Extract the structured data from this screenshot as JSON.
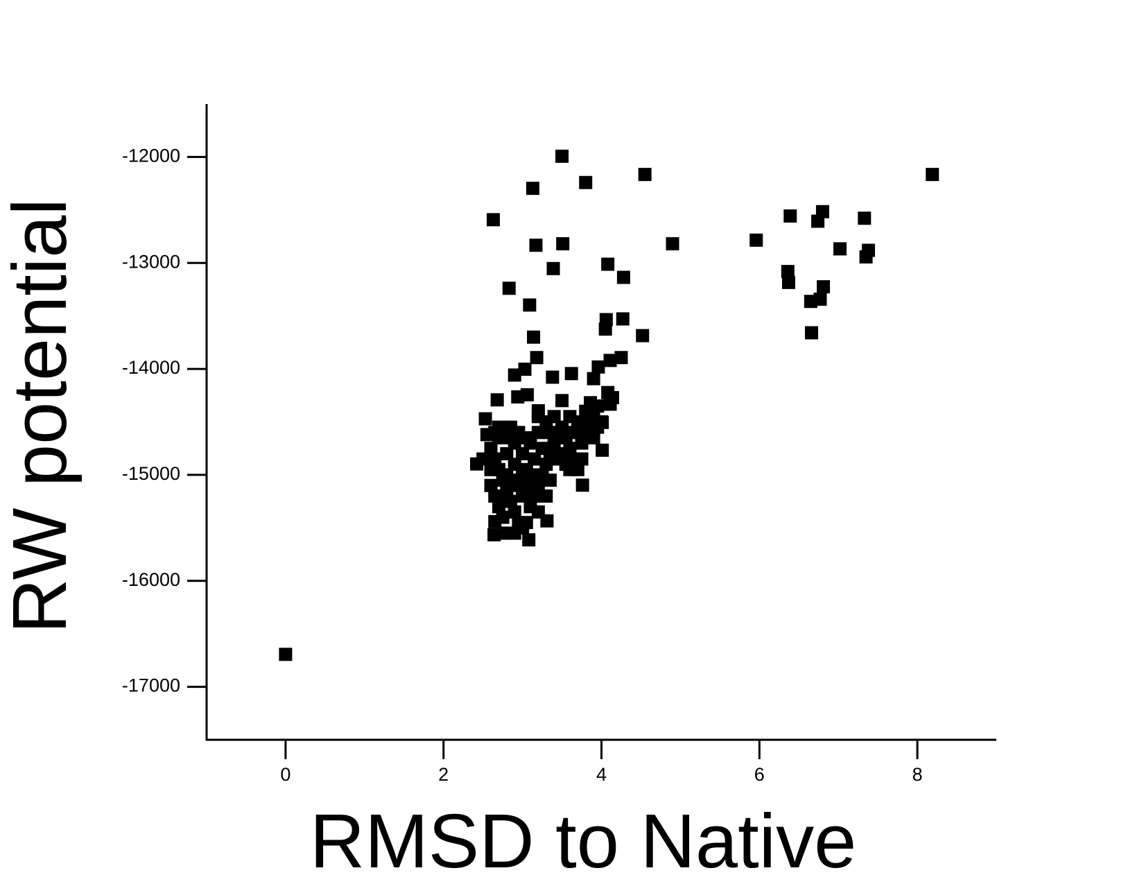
{
  "chart_data": {
    "type": "scatter",
    "xlabel": "RMSD to Native",
    "ylabel": "RW potential",
    "color": "#000000",
    "xlim": [
      -1,
      9
    ],
    "xticks": [
      0,
      2,
      4,
      6,
      8
    ],
    "ylim": [
      -17500,
      -11500
    ],
    "yticks": [
      -12000,
      -13000,
      -14000,
      -15000,
      -16000,
      -17000
    ],
    "x": [
      0,
      3.5,
      3.13,
      3.8,
      4.55,
      8.19,
      2.63,
      3.17,
      3.51,
      4.9,
      5.96,
      6.39,
      6.74,
      6.8,
      7.33,
      7.02,
      7.38,
      7.35,
      3.39,
      4.08,
      4.28,
      6.36,
      6.37,
      6.81,
      6.77,
      6.65,
      6.66,
      2.83,
      3.09,
      3.14,
      4.06,
      4.27,
      4.05,
      4.52,
      3.18,
      4.25,
      4.11,
      3.03,
      2.9,
      3.38,
      3.62,
      3.96,
      3.9,
      2.68,
      3.06,
      2.94,
      3.5,
      3.86,
      4.08,
      4.14,
      4.11,
      2.53,
      3.2,
      4.01,
      4.01,
      3.76,
      3.31,
      3.08,
      2.64,
      2.65,
      2.42,
      2.55,
      2.6,
      2.65,
      2.7,
      2.75,
      2.8,
      2.85,
      2.9,
      2.95,
      3.0,
      2.7,
      2.75,
      2.8,
      2.9,
      3.05,
      3.1,
      3.15,
      3.2,
      3.25,
      3.3,
      3.35,
      3.4,
      3.45,
      3.5,
      3.55,
      3.6,
      3.65,
      3.7,
      3.75,
      3.8,
      3.85,
      3.9,
      3.95,
      3.7,
      3.6,
      3.4,
      3.3,
      3.2,
      3.1,
      3.0,
      2.9,
      2.8,
      2.7,
      2.85,
      2.95,
      3.05,
      2.6,
      2.65,
      2.7,
      2.9,
      3.0,
      3.1,
      2.8,
      3.25,
      3.35,
      3.5,
      3.55,
      3.45,
      2.5,
      2.6,
      3.3,
      3.2,
      3.0,
      2.95,
      2.85,
      3.15,
      3.65,
      3.75,
      3.9,
      4.0,
      3.95,
      3.8,
      3.2,
      2.75,
      2.9,
      3.05,
      3.15,
      2.65,
      3.35,
      3.6
    ],
    "y": [
      -16694,
      -11993,
      -12296,
      -12241,
      -12165,
      -12165,
      -12592,
      -12833,
      -12819,
      -12819,
      -12785,
      -12557,
      -12606,
      -12516,
      -12578,
      -12867,
      -12881,
      -12943,
      -13053,
      -13012,
      -13136,
      -13081,
      -13184,
      -13225,
      -13342,
      -13363,
      -13659,
      -13239,
      -13397,
      -13700,
      -13535,
      -13528,
      -13624,
      -13686,
      -13893,
      -13893,
      -13920,
      -14003,
      -14058,
      -14078,
      -14044,
      -13982,
      -14092,
      -14292,
      -14244,
      -14264,
      -14299,
      -14319,
      -14223,
      -14271,
      -14333,
      -14471,
      -14395,
      -14505,
      -14767,
      -15097,
      -15434,
      -15613,
      -15565,
      -15441,
      -14897,
      -14620,
      -14750,
      -14850,
      -14950,
      -15050,
      -15150,
      -15250,
      -15350,
      -15450,
      -15500,
      -15300,
      -15400,
      -15550,
      -15550,
      -15450,
      -15300,
      -15200,
      -15100,
      -15000,
      -14900,
      -14800,
      -14700,
      -14600,
      -14550,
      -14650,
      -14750,
      -14850,
      -14950,
      -14700,
      -14600,
      -14500,
      -14400,
      -14550,
      -14500,
      -14450,
      -14450,
      -14500,
      -14600,
      -14700,
      -14800,
      -14900,
      -15000,
      -14650,
      -14550,
      -14600,
      -14650,
      -15100,
      -15200,
      -14550,
      -14700,
      -15000,
      -15100,
      -14800,
      -14750,
      -14600,
      -14800,
      -14900,
      -14850,
      -14850,
      -14950,
      -15200,
      -15350,
      -15200,
      -15100,
      -14650,
      -14850,
      -14600,
      -14850,
      -14650,
      -14500,
      -14350,
      -14400,
      -14450,
      -15200,
      -15050,
      -14950,
      -15000,
      -14600,
      -15050,
      -14950
    ]
  }
}
